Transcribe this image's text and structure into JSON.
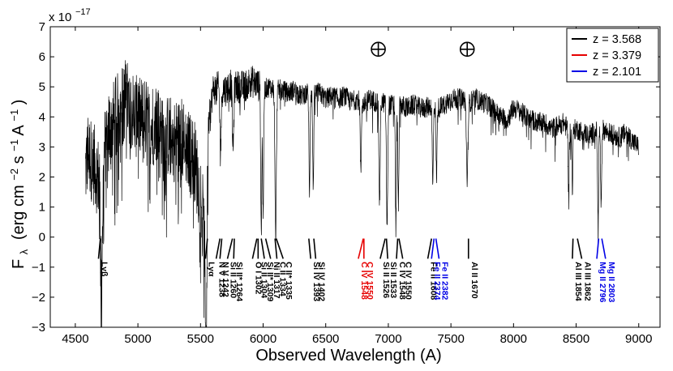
{
  "chart_data": {
    "type": "line",
    "xlabel": "Observed Wavelength (A)",
    "ylabel_main": "F",
    "ylabel_sub": "λ",
    "ylabel_units": "(erg cm",
    "ylabel_exp1": "−2",
    "ylabel_mid": " s",
    "ylabel_exp2": "−1",
    "ylabel_end": " A",
    "ylabel_exp3": "−1",
    "ylabel_close": ")",
    "y_multiplier_base": "x 10",
    "y_multiplier_exp": "−17",
    "xlim": [
      4300,
      9170
    ],
    "ylim": [
      -3,
      7
    ],
    "xticks": [
      4500,
      5000,
      5500,
      6000,
      6500,
      7000,
      7500,
      8000,
      8500,
      9000
    ],
    "yticks": [
      -3,
      -2,
      -1,
      0,
      1,
      2,
      3,
      4,
      5,
      6,
      7
    ],
    "legend": [
      {
        "label": "z = 3.568",
        "color": "#000000"
      },
      {
        "label": "z = 3.379",
        "color": "#e60000"
      },
      {
        "label": "z = 2.101",
        "color": "#0000e6"
      }
    ],
    "telluric_symbol": "⊕",
    "telluric_marks": [
      {
        "x": 6920,
        "y": 6.25
      },
      {
        "x": 7630,
        "y": 6.25
      }
    ],
    "spectrum_envelope": [
      [
        4580,
        2.2
      ],
      [
        4600,
        2.8
      ],
      [
        4650,
        2.4
      ],
      [
        4700,
        1.8
      ],
      [
        4750,
        3.4
      ],
      [
        4800,
        3.8
      ],
      [
        4850,
        4.2
      ],
      [
        4900,
        4.6
      ],
      [
        4950,
        4.3
      ],
      [
        5000,
        3.9
      ],
      [
        5050,
        4.0
      ],
      [
        5100,
        3.6
      ],
      [
        5150,
        3.9
      ],
      [
        5200,
        3.2
      ],
      [
        5250,
        3.4
      ],
      [
        5300,
        3.2
      ],
      [
        5350,
        3.3
      ],
      [
        5400,
        2.9
      ],
      [
        5450,
        2.6
      ],
      [
        5500,
        1.4
      ],
      [
        5540,
        -0.1
      ],
      [
        5560,
        3.6
      ],
      [
        5600,
        4.9
      ],
      [
        5650,
        5.0
      ],
      [
        5700,
        4.9
      ],
      [
        5750,
        5.1
      ],
      [
        5800,
        5.0
      ],
      [
        5850,
        5.0
      ],
      [
        5900,
        5.2
      ],
      [
        5950,
        5.1
      ],
      [
        6000,
        4.9
      ],
      [
        6050,
        5.0
      ],
      [
        6100,
        4.9
      ],
      [
        6150,
        4.9
      ],
      [
        6200,
        4.8
      ],
      [
        6250,
        4.9
      ],
      [
        6300,
        4.7
      ],
      [
        6350,
        4.8
      ],
      [
        6400,
        4.8
      ],
      [
        6450,
        4.8
      ],
      [
        6500,
        4.6
      ],
      [
        6550,
        4.7
      ],
      [
        6600,
        4.6
      ],
      [
        6650,
        4.7
      ],
      [
        6700,
        4.5
      ],
      [
        6750,
        4.6
      ],
      [
        6800,
        4.4
      ],
      [
        6850,
        4.6
      ],
      [
        6900,
        4.5
      ],
      [
        6950,
        4.5
      ],
      [
        7000,
        4.4
      ],
      [
        7050,
        4.4
      ],
      [
        7100,
        4.4
      ],
      [
        7150,
        4.3
      ],
      [
        7200,
        4.4
      ],
      [
        7250,
        4.3
      ],
      [
        7300,
        4.3
      ],
      [
        7350,
        4.4
      ],
      [
        7400,
        4.3
      ],
      [
        7450,
        4.4
      ],
      [
        7500,
        4.6
      ],
      [
        7550,
        4.6
      ],
      [
        7600,
        4.6
      ],
      [
        7650,
        4.5
      ],
      [
        7700,
        4.6
      ],
      [
        7750,
        4.5
      ],
      [
        7800,
        4.4
      ],
      [
        7850,
        4.2
      ],
      [
        7900,
        4.0
      ],
      [
        7950,
        3.9
      ],
      [
        8000,
        4.3
      ],
      [
        8050,
        4.2
      ],
      [
        8100,
        4.0
      ],
      [
        8150,
        3.9
      ],
      [
        8200,
        3.8
      ],
      [
        8250,
        3.8
      ],
      [
        8300,
        3.6
      ],
      [
        8350,
        3.7
      ],
      [
        8400,
        3.8
      ],
      [
        8450,
        3.5
      ],
      [
        8500,
        3.6
      ],
      [
        8550,
        3.5
      ],
      [
        8600,
        3.4
      ],
      [
        8650,
        3.5
      ],
      [
        8700,
        3.6
      ],
      [
        8750,
        3.5
      ],
      [
        8800,
        3.4
      ],
      [
        8850,
        3.3
      ],
      [
        8900,
        3.5
      ],
      [
        8950,
        3.2
      ],
      [
        9000,
        3.0
      ]
    ],
    "absorption_features": [
      {
        "center": 4710,
        "depth": 2.8,
        "width": 12
      },
      {
        "center": 5545,
        "depth": 3.6,
        "width": 10
      },
      {
        "center": 5660,
        "depth": 2.0,
        "width": 8
      },
      {
        "center": 5760,
        "depth": 2.2,
        "width": 8
      },
      {
        "center": 5985,
        "depth": 4.7,
        "width": 6
      },
      {
        "center": 6000,
        "depth": 4.2,
        "width": 6
      },
      {
        "center": 6100,
        "depth": 4.9,
        "width": 8
      },
      {
        "center": 6370,
        "depth": 3.3,
        "width": 6
      },
      {
        "center": 6400,
        "depth": 3.1,
        "width": 6
      },
      {
        "center": 6780,
        "depth": 2.4,
        "width": 6
      },
      {
        "center": 6930,
        "depth": 3.3,
        "width": 7
      },
      {
        "center": 6990,
        "depth": 4.2,
        "width": 7
      },
      {
        "center": 7060,
        "depth": 4.1,
        "width": 6
      },
      {
        "center": 7080,
        "depth": 3.5,
        "width": 6
      },
      {
        "center": 7355,
        "depth": 2.7,
        "width": 6
      },
      {
        "center": 7385,
        "depth": 2.3,
        "width": 6
      },
      {
        "center": 7630,
        "depth": 2.6,
        "width": 9
      },
      {
        "center": 8440,
        "depth": 2.2,
        "width": 5
      },
      {
        "center": 8470,
        "depth": 2.0,
        "width": 5
      },
      {
        "center": 8675,
        "depth": 3.1,
        "width": 6
      },
      {
        "center": 8700,
        "depth": 2.7,
        "width": 6
      }
    ],
    "line_ids": [
      {
        "label": "Lyβ",
        "tick_from_x": 4685,
        "tick_to_x": 4700,
        "color": "#000000"
      },
      {
        "label": "Lyα",
        "tick_from_x": 5540,
        "tick_to_x": 5555,
        "color": "#000000"
      },
      {
        "label": "N V 1238",
        "tick_from_x": 5625,
        "tick_to_x": 5655,
        "color": "#000000"
      },
      {
        "label": "N V 1242",
        "tick_from_x": 5655,
        "tick_to_x": 5670,
        "color": "#000000"
      },
      {
        "label": "Si II 1260",
        "tick_from_x": 5715,
        "tick_to_x": 5755,
        "color": "#000000"
      },
      {
        "label": "Si II* 1264",
        "tick_from_x": 5765,
        "tick_to_x": 5770,
        "color": "#000000"
      },
      {
        "label": "O I 1302",
        "tick_from_x": 5915,
        "tick_to_x": 5950,
        "color": "#000000"
      },
      {
        "label": "Si II 1304",
        "tick_from_x": 5960,
        "tick_to_x": 5960,
        "color": "#000000"
      },
      {
        "label": "Si II* 1309",
        "tick_from_x": 6010,
        "tick_to_x": 5985,
        "color": "#000000"
      },
      {
        "label": "Ni II 1317",
        "tick_from_x": 6060,
        "tick_to_x": 6020,
        "color": "#000000"
      },
      {
        "label": "C II 1334",
        "tick_from_x": 6110,
        "tick_to_x": 6095,
        "color": "#000000"
      },
      {
        "label": "C II* 1335",
        "tick_from_x": 6160,
        "tick_to_x": 6105,
        "color": "#000000"
      },
      {
        "label": "Si IV 1393",
        "tick_from_x": 6380,
        "tick_to_x": 6365,
        "color": "#000000"
      },
      {
        "label": "Si IV 1402",
        "tick_from_x": 6420,
        "tick_to_x": 6405,
        "color": "#000000"
      },
      {
        "label": "C IV 1548",
        "tick_from_x": 6760,
        "tick_to_x": 6800,
        "color": "#e60000"
      },
      {
        "label": "C IV 1550",
        "tick_from_x": 6805,
        "tick_to_x": 6805,
        "color": "#e60000"
      },
      {
        "label": "Si II 1526",
        "tick_from_x": 6935,
        "tick_to_x": 6975,
        "color": "#000000"
      },
      {
        "label": "Si II 1533",
        "tick_from_x": 6995,
        "tick_to_x": 6985,
        "color": "#000000"
      },
      {
        "label": "C IV 1548",
        "tick_from_x": 7065,
        "tick_to_x": 7075,
        "color": "#000000"
      },
      {
        "label": "C IV 1550",
        "tick_from_x": 7115,
        "tick_to_x": 7085,
        "color": "#000000"
      },
      {
        "label": "Fe II 1608",
        "tick_from_x": 7315,
        "tick_to_x": 7345,
        "color": "#000000"
      },
      {
        "label": "Fe II 2374",
        "tick_from_x": 7345,
        "tick_to_x": 7365,
        "color": "#0000e6"
      },
      {
        "label": "Fe II 2382",
        "tick_from_x": 7405,
        "tick_to_x": 7380,
        "color": "#0000e6"
      },
      {
        "label": "Al II 1670",
        "tick_from_x": 7640,
        "tick_to_x": 7640,
        "color": "#000000"
      },
      {
        "label": "Al III 1854",
        "tick_from_x": 8470,
        "tick_to_x": 8475,
        "color": "#000000"
      },
      {
        "label": "Al III 1862",
        "tick_from_x": 8545,
        "tick_to_x": 8510,
        "color": "#000000"
      },
      {
        "label": "Mg II 2796",
        "tick_from_x": 8665,
        "tick_to_x": 8680,
        "color": "#0000e6"
      },
      {
        "label": "Mg II 2803",
        "tick_from_x": 8735,
        "tick_to_x": 8705,
        "color": "#0000e6"
      }
    ]
  }
}
